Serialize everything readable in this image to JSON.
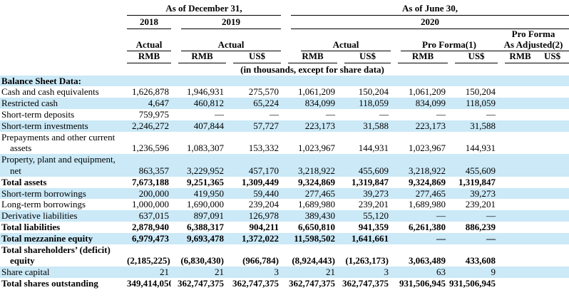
{
  "table": {
    "header": {
      "dec31": "As of December 31,",
      "jun30": "As of June 30,",
      "y2018": "2018",
      "y2019": "2019",
      "y2020": "2020",
      "actual": "Actual",
      "pro_forma": "Pro Forma(1)",
      "pro_forma_adj_line1": "Pro Forma",
      "pro_forma_adj_line2": "As Adjusted(2)",
      "rmb": "RMB",
      "usd": "US$",
      "units_note": "(in thousands, except for share data)"
    },
    "rows": [
      {
        "label": "Balance Sheet Data:",
        "bold": true,
        "stripe": true,
        "values": [
          "",
          "",
          "",
          "",
          "",
          "",
          "",
          "",
          ""
        ]
      },
      {
        "label": "Cash and cash equivalents",
        "bold": false,
        "stripe": false,
        "values": [
          "1,626,878",
          "1,946,931",
          "275,570",
          "1,061,209",
          "150,204",
          "1,061,209",
          "150,204",
          "",
          ""
        ]
      },
      {
        "label": "Restricted cash",
        "bold": false,
        "stripe": true,
        "values": [
          "4,647",
          "460,812",
          "65,224",
          "834,099",
          "118,059",
          "834,099",
          "118,059",
          "",
          ""
        ]
      },
      {
        "label": "Short-term deposits",
        "bold": false,
        "stripe": false,
        "values": [
          "759,975",
          "—",
          "—",
          "—",
          "—",
          "—",
          "—",
          "",
          ""
        ]
      },
      {
        "label": "Short-term investments",
        "bold": false,
        "stripe": true,
        "values": [
          "2,246,272",
          "407,844",
          "57,727",
          "223,173",
          "31,588",
          "223,173",
          "31,588",
          "",
          ""
        ]
      },
      {
        "label": "Prepayments and other current",
        "label2": "assets",
        "bold": false,
        "stripe": false,
        "values": [
          "1,236,596",
          "1,083,307",
          "153,332",
          "1,023,967",
          "144,931",
          "1,023,967",
          "144,931",
          "",
          ""
        ]
      },
      {
        "label": "Property, plant and equipment,",
        "label2": "net",
        "bold": false,
        "stripe": true,
        "values": [
          "863,357",
          "3,229,952",
          "457,170",
          "3,218,922",
          "455,609",
          "3,218,922",
          "455,609",
          "",
          ""
        ]
      },
      {
        "label": "Total assets",
        "bold": true,
        "stripe": false,
        "values": [
          "7,673,188",
          "9,251,365",
          "1,309,449",
          "9,324,869",
          "1,319,847",
          "9,324,869",
          "1,319,847",
          "",
          ""
        ]
      },
      {
        "label": "Short-term borrowings",
        "bold": false,
        "stripe": true,
        "values": [
          "200,000",
          "419,950",
          "59,440",
          "277,465",
          "39,273",
          "277,465",
          "39,273",
          "",
          ""
        ]
      },
      {
        "label": "Long-term borrowings",
        "bold": false,
        "stripe": false,
        "values": [
          "1,000,000",
          "1,690,000",
          "239,204",
          "1,689,980",
          "239,201",
          "1,689,980",
          "239,201",
          "",
          ""
        ]
      },
      {
        "label": "Derivative liabilities",
        "bold": false,
        "stripe": true,
        "values": [
          "637,015",
          "897,091",
          "126,978",
          "389,430",
          "55,120",
          "—",
          "—",
          "",
          ""
        ]
      },
      {
        "label": "Total liabilities",
        "bold": true,
        "stripe": false,
        "values": [
          "2,878,940",
          "6,388,317",
          "904,211",
          "6,650,810",
          "941,359",
          "6,261,380",
          "886,239",
          "",
          ""
        ]
      },
      {
        "label": "Total mezzanine equity",
        "bold": true,
        "stripe": true,
        "values": [
          "6,979,473",
          "9,693,478",
          "1,372,022",
          "11,598,502",
          "1,641,661",
          "—",
          "—",
          "",
          ""
        ]
      },
      {
        "label": "Total shareholders’ (deficit)",
        "label2": "equity",
        "bold": true,
        "stripe": false,
        "values": [
          "(2,185,225)",
          "(6,830,430)",
          "(966,784)",
          "(8,924,443)",
          "(1,263,173)",
          "3,063,489",
          "433,608",
          "",
          ""
        ]
      },
      {
        "label": "Share capital",
        "bold": false,
        "stripe": true,
        "values": [
          "21",
          "21",
          "3",
          "21",
          "3",
          "63",
          "9",
          "",
          ""
        ]
      },
      {
        "label": "Total shares outstanding",
        "bold": true,
        "stripe": false,
        "values": [
          "349,414,050",
          "362,747,375",
          "362,747,375",
          "362,747,375",
          "362,747,375",
          "931,506,945",
          "931,506,945",
          "",
          ""
        ]
      }
    ]
  },
  "colors": {
    "stripe": "#cbe9f7",
    "text": "#000000",
    "rule": "#000000"
  }
}
